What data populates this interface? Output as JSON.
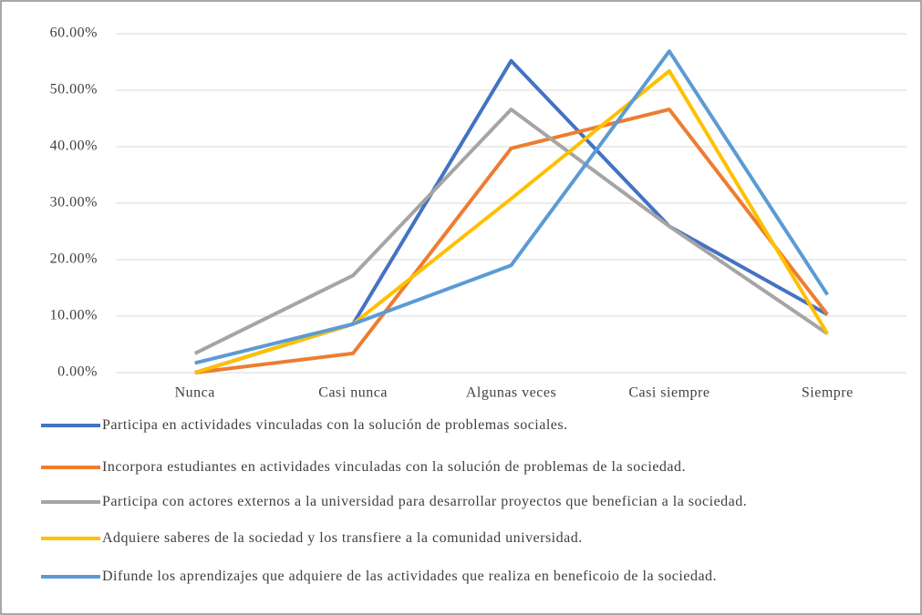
{
  "chart_data": {
    "type": "line",
    "categories": [
      "Nunca",
      "Casi nunca",
      "Algunas veces",
      "Casi siempre",
      "Siempre"
    ],
    "series": [
      {
        "name": "Participa en actividades vinculadas con la solución de problemas sociales.",
        "color": "#4472c4",
        "values": [
          0,
          8.6,
          55.2,
          25.9,
          10.3
        ]
      },
      {
        "name": "Incorpora estudiantes en actividades vinculadas con la solución de problemas de la sociedad.",
        "color": "#ed7d31",
        "values": [
          0,
          3.4,
          39.7,
          46.6,
          10.3
        ]
      },
      {
        "name": "Participa con actores externos a la universidad para desarrollar proyectos que benefician a la sociedad.",
        "color": "#a5a5a5",
        "values": [
          3.4,
          17.2,
          46.6,
          25.9,
          6.9
        ]
      },
      {
        "name": "Adquiere saberes de la sociedad y los transfiere a la comunidad universidad.",
        "color": "#ffc000",
        "values": [
          0,
          8.6,
          30.8,
          53.4,
          6.9
        ]
      },
      {
        "name": "Difunde los aprendizajes que adquiere de las actividades que realiza en beneficoio de la sociedad.",
        "color": "#5b9bd5",
        "values": [
          1.7,
          8.6,
          19.0,
          56.9,
          13.8
        ]
      }
    ],
    "ylim": [
      0,
      60
    ],
    "yticks": [
      {
        "value": 0,
        "label": "0.00%"
      },
      {
        "value": 10,
        "label": "10.00%"
      },
      {
        "value": 20,
        "label": "20.00%"
      },
      {
        "value": 30,
        "label": "30.00%"
      },
      {
        "value": 40,
        "label": "40.00%"
      },
      {
        "value": 50,
        "label": "50.00%"
      },
      {
        "value": 60,
        "label": "60.00%"
      }
    ],
    "grid": true
  }
}
